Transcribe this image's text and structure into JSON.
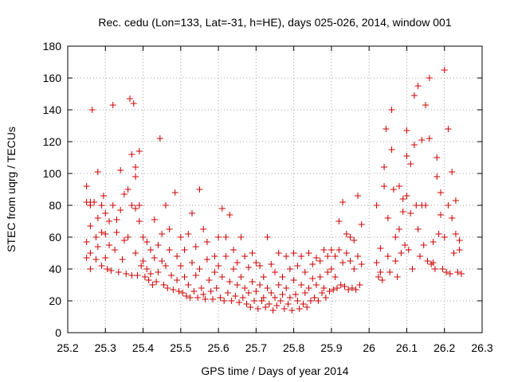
{
  "chart_data": {
    "type": "scatter",
    "title": "Rec. cedu (Lon=133, Lat=-31, h=HE), days 025-026, 2014, window 001",
    "xlabel": "GPS time / Days of year 2014",
    "ylabel": "STEC from uqrg / TECUs",
    "xlim": [
      25.2,
      26.3
    ],
    "ylim": [
      0,
      180
    ],
    "xticks": [
      "25.2",
      "25.3",
      "25.4",
      "25.5",
      "25.6",
      "25.7",
      "25.8",
      "25.9",
      "26",
      "26.1",
      "26.2",
      "26.3"
    ],
    "yticks": [
      "0",
      "20",
      "40",
      "60",
      "80",
      "100",
      "120",
      "140",
      "160",
      "180"
    ],
    "grid": true,
    "marker": "+",
    "color": "#cc0000",
    "points": [
      [
        25.25,
        92
      ],
      [
        25.25,
        82
      ],
      [
        25.25,
        57
      ],
      [
        25.25,
        47
      ],
      [
        25.26,
        40
      ],
      [
        25.26,
        82
      ],
      [
        25.26,
        80
      ],
      [
        25.26,
        67
      ],
      [
        25.26,
        50
      ],
      [
        25.265,
        140
      ],
      [
        25.27,
        82
      ],
      [
        25.275,
        60
      ],
      [
        25.275,
        46
      ],
      [
        25.28,
        101
      ],
      [
        25.28,
        72
      ],
      [
        25.28,
        54
      ],
      [
        25.29,
        80
      ],
      [
        25.29,
        63
      ],
      [
        25.29,
        42
      ],
      [
        25.295,
        86
      ],
      [
        25.3,
        75
      ],
      [
        25.3,
        62
      ],
      [
        25.3,
        47
      ],
      [
        25.305,
        40
      ],
      [
        25.31,
        70
      ],
      [
        25.31,
        55
      ],
      [
        25.315,
        39
      ],
      [
        25.32,
        143
      ],
      [
        25.32,
        80
      ],
      [
        25.325,
        52
      ],
      [
        25.33,
        71
      ],
      [
        25.33,
        63
      ],
      [
        25.335,
        38
      ],
      [
        25.34,
        102
      ],
      [
        25.34,
        77
      ],
      [
        25.345,
        46
      ],
      [
        25.35,
        87
      ],
      [
        25.35,
        58
      ],
      [
        25.355,
        37
      ],
      [
        25.36,
        90
      ],
      [
        25.36,
        60
      ],
      [
        25.365,
        147
      ],
      [
        25.37,
        112
      ],
      [
        25.37,
        80
      ],
      [
        25.37,
        36
      ],
      [
        25.375,
        144
      ],
      [
        25.38,
        104
      ],
      [
        25.38,
        98
      ],
      [
        25.38,
        78
      ],
      [
        25.38,
        50
      ],
      [
        25.385,
        36
      ],
      [
        25.39,
        114
      ],
      [
        25.39,
        80
      ],
      [
        25.39,
        70
      ],
      [
        25.395,
        42
      ],
      [
        25.4,
        60
      ],
      [
        25.4,
        45
      ],
      [
        25.405,
        35
      ],
      [
        25.41,
        57
      ],
      [
        25.41,
        40
      ],
      [
        25.415,
        33
      ],
      [
        25.42,
        52
      ],
      [
        25.42,
        37
      ],
      [
        25.425,
        30
      ],
      [
        25.43,
        71
      ],
      [
        25.43,
        47
      ],
      [
        25.435,
        32
      ],
      [
        25.44,
        55
      ],
      [
        25.44,
        38
      ],
      [
        25.445,
        122
      ],
      [
        25.45,
        62
      ],
      [
        25.45,
        45
      ],
      [
        25.455,
        30
      ],
      [
        25.46,
        80
      ],
      [
        25.46,
        42
      ],
      [
        25.465,
        28
      ],
      [
        25.47,
        65
      ],
      [
        25.47,
        52
      ],
      [
        25.475,
        36
      ],
      [
        25.48,
        27
      ],
      [
        25.485,
        88
      ],
      [
        25.49,
        48
      ],
      [
        25.49,
        33
      ],
      [
        25.495,
        26
      ],
      [
        25.5,
        60
      ],
      [
        25.5,
        42
      ],
      [
        25.505,
        25
      ],
      [
        25.51,
        52
      ],
      [
        25.51,
        35
      ],
      [
        25.515,
        23
      ],
      [
        25.52,
        62
      ],
      [
        25.52,
        30
      ],
      [
        25.525,
        22
      ],
      [
        25.53,
        75
      ],
      [
        25.53,
        44
      ],
      [
        25.535,
        26
      ],
      [
        25.54,
        54
      ],
      [
        25.54,
        36
      ],
      [
        25.545,
        22
      ],
      [
        25.55,
        90
      ],
      [
        25.55,
        40
      ],
      [
        25.555,
        28
      ],
      [
        25.56,
        65
      ],
      [
        25.56,
        24
      ],
      [
        25.565,
        21
      ],
      [
        25.57,
        57
      ],
      [
        25.57,
        46
      ],
      [
        25.575,
        33
      ],
      [
        25.58,
        26
      ],
      [
        25.585,
        21
      ],
      [
        25.59,
        48
      ],
      [
        25.59,
        38
      ],
      [
        25.595,
        28
      ],
      [
        25.6,
        60
      ],
      [
        25.6,
        42
      ],
      [
        25.605,
        22
      ],
      [
        25.61,
        78
      ],
      [
        25.61,
        35
      ],
      [
        25.615,
        20
      ],
      [
        25.62,
        60
      ],
      [
        25.62,
        48
      ],
      [
        25.625,
        25
      ],
      [
        25.63,
        74
      ],
      [
        25.63,
        32
      ],
      [
        25.635,
        20
      ],
      [
        25.64,
        52
      ],
      [
        25.64,
        40
      ],
      [
        25.645,
        23
      ],
      [
        25.65,
        44
      ],
      [
        25.65,
        30
      ],
      [
        25.655,
        19
      ],
      [
        25.66,
        60
      ],
      [
        25.66,
        35
      ],
      [
        25.665,
        22
      ],
      [
        25.67,
        48
      ],
      [
        25.67,
        28
      ],
      [
        25.675,
        18
      ],
      [
        25.68,
        41
      ],
      [
        25.68,
        25
      ],
      [
        25.685,
        16
      ],
      [
        25.69,
        50
      ],
      [
        25.69,
        32
      ],
      [
        25.695,
        20
      ],
      [
        25.7,
        44
      ],
      [
        25.7,
        26
      ],
      [
        25.705,
        15
      ],
      [
        25.71,
        42
      ],
      [
        25.71,
        30
      ],
      [
        25.715,
        20
      ],
      [
        25.72,
        35
      ],
      [
        25.72,
        22
      ],
      [
        25.725,
        16
      ],
      [
        25.73,
        60
      ],
      [
        25.73,
        28
      ],
      [
        25.735,
        18
      ],
      [
        25.74,
        43
      ],
      [
        25.74,
        25
      ],
      [
        25.745,
        14
      ],
      [
        25.75,
        38
      ],
      [
        25.75,
        22
      ],
      [
        25.755,
        17
      ],
      [
        25.76,
        50
      ],
      [
        25.76,
        30
      ],
      [
        25.765,
        20
      ],
      [
        25.77,
        35
      ],
      [
        25.77,
        24
      ],
      [
        25.775,
        15
      ],
      [
        25.78,
        48
      ],
      [
        25.78,
        28
      ],
      [
        25.785,
        18
      ],
      [
        25.79,
        40
      ],
      [
        25.79,
        22
      ],
      [
        25.795,
        14
      ],
      [
        25.8,
        50
      ],
      [
        25.8,
        33
      ],
      [
        25.805,
        24
      ],
      [
        25.81,
        42
      ],
      [
        25.81,
        20
      ],
      [
        25.815,
        15
      ],
      [
        25.82,
        48
      ],
      [
        25.82,
        30
      ],
      [
        25.825,
        18
      ],
      [
        25.83,
        38
      ],
      [
        25.83,
        25
      ],
      [
        25.835,
        16
      ],
      [
        25.84,
        50
      ],
      [
        25.84,
        28
      ],
      [
        25.845,
        20
      ],
      [
        25.85,
        43
      ],
      [
        25.85,
        34
      ],
      [
        25.855,
        22
      ],
      [
        25.86,
        47
      ],
      [
        25.86,
        30
      ],
      [
        25.865,
        20
      ],
      [
        25.87,
        45
      ],
      [
        25.87,
        35
      ],
      [
        25.875,
        25
      ],
      [
        25.88,
        52
      ],
      [
        25.88,
        28
      ],
      [
        25.885,
        22
      ],
      [
        25.89,
        48
      ],
      [
        25.89,
        38
      ],
      [
        25.895,
        26
      ],
      [
        25.9,
        52
      ],
      [
        25.9,
        40
      ],
      [
        25.905,
        27
      ],
      [
        25.91,
        48
      ],
      [
        25.91,
        35
      ],
      [
        25.915,
        28
      ],
      [
        25.92,
        70
      ],
      [
        25.92,
        52
      ],
      [
        25.925,
        30
      ],
      [
        25.93,
        82
      ],
      [
        25.93,
        44
      ],
      [
        25.935,
        29
      ],
      [
        25.94,
        62
      ],
      [
        25.94,
        50
      ],
      [
        25.945,
        27
      ],
      [
        25.95,
        60
      ],
      [
        25.95,
        45
      ],
      [
        25.955,
        28
      ],
      [
        25.96,
        58
      ],
      [
        25.96,
        40
      ],
      [
        25.965,
        27
      ],
      [
        25.97,
        86
      ],
      [
        25.97,
        48
      ],
      [
        25.975,
        30
      ],
      [
        25.98,
        68
      ],
      [
        25.98,
        43
      ],
      [
        26.02,
        80
      ],
      [
        26.02,
        44
      ],
      [
        26.025,
        35
      ],
      [
        26.03,
        53
      ],
      [
        26.03,
        38
      ],
      [
        26.035,
        33
      ],
      [
        26.04,
        104
      ],
      [
        26.04,
        92
      ],
      [
        26.045,
        128
      ],
      [
        26.05,
        72
      ],
      [
        26.05,
        48
      ],
      [
        26.055,
        38
      ],
      [
        26.06,
        140
      ],
      [
        26.06,
        115
      ],
      [
        26.065,
        90
      ],
      [
        26.07,
        60
      ],
      [
        26.07,
        45
      ],
      [
        26.075,
        35
      ],
      [
        26.08,
        92
      ],
      [
        26.08,
        65
      ],
      [
        26.085,
        50
      ],
      [
        26.09,
        84
      ],
      [
        26.09,
        76
      ],
      [
        26.095,
        55
      ],
      [
        26.1,
        127
      ],
      [
        26.1,
        111
      ],
      [
        26.1,
        86
      ],
      [
        26.105,
        52
      ],
      [
        26.11,
        106
      ],
      [
        26.11,
        75
      ],
      [
        26.115,
        40
      ],
      [
        26.12,
        149
      ],
      [
        26.12,
        118
      ],
      [
        26.125,
        80
      ],
      [
        26.13,
        155
      ],
      [
        26.13,
        65
      ],
      [
        26.135,
        48
      ],
      [
        26.14,
        121
      ],
      [
        26.14,
        80
      ],
      [
        26.145,
        55
      ],
      [
        26.15,
        143
      ],
      [
        26.15,
        80
      ],
      [
        26.155,
        45
      ],
      [
        26.16,
        160
      ],
      [
        26.16,
        122
      ],
      [
        26.165,
        43
      ],
      [
        26.17,
        57
      ],
      [
        26.17,
        44
      ],
      [
        26.175,
        40
      ],
      [
        26.18,
        110
      ],
      [
        26.18,
        98
      ],
      [
        26.185,
        62
      ],
      [
        26.19,
        88
      ],
      [
        26.19,
        74
      ],
      [
        26.195,
        40
      ],
      [
        26.2,
        165
      ],
      [
        26.2,
        60
      ],
      [
        26.205,
        38
      ],
      [
        26.21,
        128
      ],
      [
        26.21,
        80
      ],
      [
        26.215,
        37
      ],
      [
        26.22,
        101
      ],
      [
        26.22,
        72
      ],
      [
        26.225,
        50
      ],
      [
        26.23,
        83
      ],
      [
        26.23,
        62
      ],
      [
        26.235,
        38
      ],
      [
        26.24,
        58
      ],
      [
        26.24,
        52
      ],
      [
        26.245,
        37
      ]
    ]
  }
}
